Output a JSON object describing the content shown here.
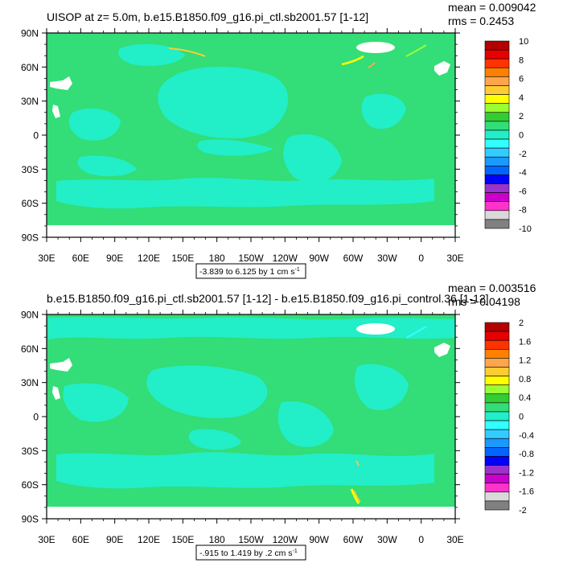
{
  "colors": {
    "field": "#33dd77",
    "field_low": "#22eec8",
    "missing": "#ffffff",
    "frame": "#000000"
  },
  "axes": {
    "lat_ticks": [
      "90N",
      "60N",
      "30N",
      "0",
      "30S",
      "60S",
      "90S"
    ],
    "lon_ticks": [
      "30E",
      "60E",
      "90E",
      "120E",
      "150E",
      "180",
      "150W",
      "120W",
      "90W",
      "60W",
      "30W",
      "0",
      "30E"
    ]
  },
  "panels": [
    {
      "title": "UISOP at z=   5.0m, b.e15.B1850.f09_g16.pi_ctl.sb2001.57 [1-12]",
      "mean": "mean = 0.009042",
      "rms": "rms = 0.2453",
      "range_label": "-3.839 to 6.125 by 1 cm s",
      "range_unit_exp": "-1",
      "colorbar": {
        "labels": [
          "10",
          "8",
          "6",
          "4",
          "2",
          "0",
          "-2",
          "-4",
          "-6",
          "-8",
          "-10"
        ],
        "colors": [
          "#b30000",
          "#e60000",
          "#ff3300",
          "#ff8000",
          "#ffa64d",
          "#ffcc33",
          "#ffff00",
          "#99ff33",
          "#33cc33",
          "#33dd77",
          "#22eec8",
          "#33ffff",
          "#33ccff",
          "#1a99ff",
          "#0066ff",
          "#0000ff",
          "#9933cc",
          "#cc00cc",
          "#ff33cc",
          "#d9d9d9",
          "#808080"
        ]
      }
    },
    {
      "title": "b.e15.B1850.f09_g16.pi_ctl.sb2001.57 [1-12] - b.e15.B1850.f09_g16.pi_control.36 [1-12]",
      "mean": "mean = 0.003516",
      "rms": "rms = 0.04198",
      "range_label": "-.915 to 1.419 by .2 cm s",
      "range_unit_exp": "-1",
      "colorbar": {
        "labels": [
          "2",
          "1.6",
          "1.2",
          "0.8",
          "0.4",
          "0",
          "-0.4",
          "-0.8",
          "-1.2",
          "-1.6",
          "-2"
        ],
        "colors": [
          "#b30000",
          "#e60000",
          "#ff3300",
          "#ff8000",
          "#ffa64d",
          "#ffcc33",
          "#ffff00",
          "#99ff33",
          "#33cc33",
          "#33dd77",
          "#22eec8",
          "#33ffff",
          "#33ccff",
          "#1a99ff",
          "#0066ff",
          "#0000ff",
          "#9933cc",
          "#cc00cc",
          "#ff33cc",
          "#d9d9d9",
          "#808080"
        ]
      }
    }
  ],
  "chart_data": [
    {
      "type": "heatmap",
      "title": "UISOP at z=   5.0m, b.e15.B1850.f09_g16.pi_ctl.sb2001.57 [1-12]",
      "xlabel": "",
      "ylabel": "",
      "x_range": [
        "30E",
        "30E (390)"
      ],
      "y_range": [
        "90S",
        "90N"
      ],
      "levels": [
        -10,
        -9,
        -8,
        -7,
        -6,
        -5,
        -4,
        -3,
        -2,
        -1,
        0,
        1,
        2,
        3,
        4,
        5,
        6,
        7,
        8,
        9,
        10
      ],
      "field_min": -3.839,
      "field_max": 6.125,
      "contour_interval": 1,
      "units": "cm s-1",
      "mean": 0.009042,
      "rms": 0.2453
    },
    {
      "type": "heatmap",
      "title": "b.e15.B1850.f09_g16.pi_ctl.sb2001.57 [1-12] - b.e15.B1850.f09_g16.pi_control.36 [1-12]",
      "xlabel": "",
      "ylabel": "",
      "x_range": [
        "30E",
        "30E (390)"
      ],
      "y_range": [
        "90S",
        "90N"
      ],
      "levels": [
        -2,
        -1.8,
        -1.6,
        -1.4,
        -1.2,
        -1,
        -0.8,
        -0.6,
        -0.4,
        -0.2,
        0,
        0.2,
        0.4,
        0.6,
        0.8,
        1,
        1.2,
        1.4,
        1.6,
        1.8,
        2
      ],
      "field_min": -0.915,
      "field_max": 1.419,
      "contour_interval": 0.2,
      "units": "cm s-1",
      "mean": 0.003516,
      "rms": 0.04198
    }
  ]
}
